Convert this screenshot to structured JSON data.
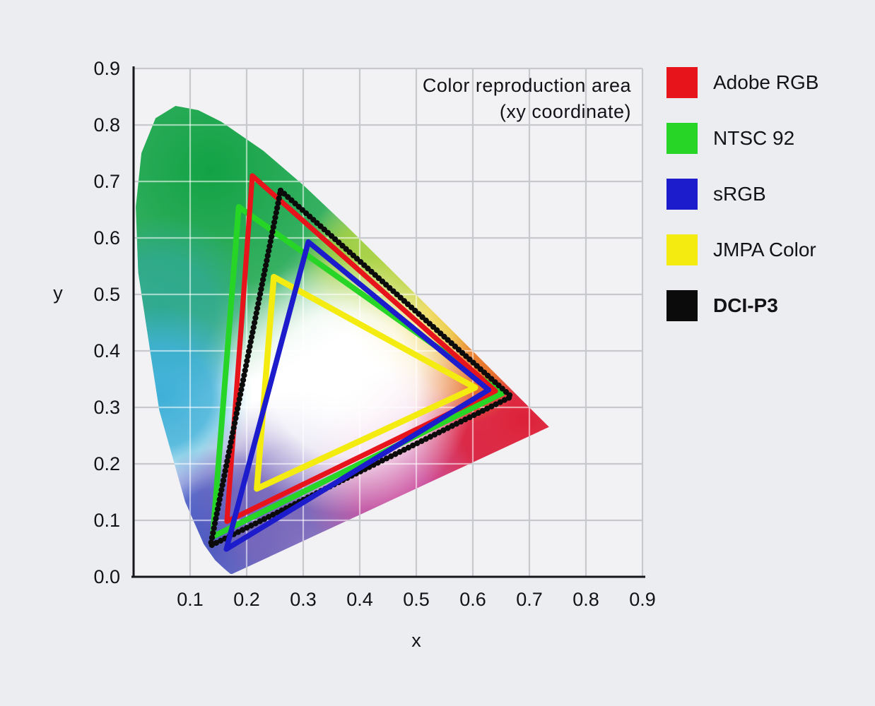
{
  "figure": {
    "title_line1": "Color reproduction area",
    "title_line2": "(xy coordinate)"
  },
  "colors": {
    "page_bg": "#ecedf0",
    "plot_bg": "#f2f2f5",
    "grid_gray": "#c7c9cd",
    "axis_color": "#17171a",
    "text_color": "#131317"
  },
  "chart_data": {
    "type": "area",
    "title": "Color reproduction area (xy coordinate)",
    "xlabel": "x",
    "ylabel": "y",
    "xlim": [
      0,
      0.9
    ],
    "ylim": [
      0,
      0.9
    ],
    "grid": true,
    "legend_position": "right",
    "x_tick_labels": [
      "0.1",
      "0.2",
      "0.3",
      "0.4",
      "0.5",
      "0.6",
      "0.7",
      "0.8",
      "0.9"
    ],
    "y_tick_labels": [
      "0.9",
      "0.8",
      "0.7",
      "0.6",
      "0.5",
      "0.4",
      "0.3",
      "0.2",
      "0.1",
      "0.0"
    ],
    "series": [
      {
        "name": "Adobe RGB",
        "color": "#e8141c",
        "width": 7.2,
        "style": "solid",
        "vertices": [
          [
            0.21,
            0.71
          ],
          [
            0.64,
            0.329
          ],
          [
            0.165,
            0.098
          ]
        ]
      },
      {
        "name": "NTSC 92",
        "color": "#27d527",
        "width": 8.0,
        "style": "solid",
        "vertices": [
          [
            0.186,
            0.655
          ],
          [
            0.652,
            0.325
          ],
          [
            0.14,
            0.071
          ]
        ]
      },
      {
        "name": "sRGB",
        "color": "#1c1ccd",
        "width": 7.5,
        "style": "solid",
        "vertices": [
          [
            0.309,
            0.593
          ],
          [
            0.628,
            0.331
          ],
          [
            0.164,
            0.049
          ]
        ]
      },
      {
        "name": "JMPA Color",
        "color": "#f4ec10",
        "width": 8.5,
        "style": "solid",
        "vertices": [
          [
            0.248,
            0.531
          ],
          [
            0.604,
            0.335
          ],
          [
            0.218,
            0.156
          ]
        ]
      },
      {
        "name": "DCI-P3",
        "color": "#0b0b0b",
        "width": 8.2,
        "style": "beaded",
        "vertices": [
          [
            0.26,
            0.684
          ],
          [
            0.668,
            0.319
          ],
          [
            0.136,
            0.055
          ]
        ]
      }
    ],
    "spectral_locus": [
      [
        0.1741,
        0.005
      ],
      [
        0.1714,
        0.0051
      ],
      [
        0.1644,
        0.0109
      ],
      [
        0.1566,
        0.0177
      ],
      [
        0.144,
        0.0297
      ],
      [
        0.1241,
        0.0578
      ],
      [
        0.0913,
        0.1327
      ],
      [
        0.0454,
        0.295
      ],
      [
        0.0082,
        0.5384
      ],
      [
        0.0039,
        0.6548
      ],
      [
        0.0139,
        0.7502
      ],
      [
        0.0389,
        0.812
      ],
      [
        0.0743,
        0.8338
      ],
      [
        0.1142,
        0.8262
      ],
      [
        0.1547,
        0.8059
      ],
      [
        0.2296,
        0.7543
      ],
      [
        0.3016,
        0.6923
      ],
      [
        0.3731,
        0.6245
      ],
      [
        0.4441,
        0.5547
      ],
      [
        0.5125,
        0.4866
      ],
      [
        0.5752,
        0.4242
      ],
      [
        0.627,
        0.3725
      ],
      [
        0.6658,
        0.334
      ],
      [
        0.6915,
        0.3083
      ],
      [
        0.719,
        0.2809
      ],
      [
        0.7347,
        0.2653
      ]
    ],
    "locus_fill": [
      {
        "x": 0.135,
        "y": 0.72,
        "r": 0.38,
        "color": "#12a245",
        "alpha": 1
      },
      {
        "x": 0.05,
        "y": 0.47,
        "r": 0.17,
        "color": "#2fa98f",
        "alpha": 1
      },
      {
        "x": 0.05,
        "y": 0.32,
        "r": 0.16,
        "color": "#3fb0d8",
        "alpha": 1
      },
      {
        "x": 0.155,
        "y": 0.07,
        "r": 0.16,
        "color": "#3a50c0",
        "alpha": 1
      },
      {
        "x": 0.3,
        "y": 0.12,
        "r": 0.21,
        "color": "#7a68ba",
        "alpha": 1
      },
      {
        "x": 0.51,
        "y": 0.17,
        "r": 0.21,
        "color": "#cb4f9e",
        "alpha": 1
      },
      {
        "x": 0.69,
        "y": 0.28,
        "r": 0.21,
        "color": "#dc2038",
        "alpha": 1
      },
      {
        "x": 0.575,
        "y": 0.4,
        "r": 0.13,
        "color": "#ea8424",
        "alpha": 0.9
      },
      {
        "x": 0.5,
        "y": 0.47,
        "r": 0.12,
        "color": "#e8d01e",
        "alpha": 0.9
      },
      {
        "x": 0.42,
        "y": 0.55,
        "r": 0.13,
        "color": "#a6ce2c",
        "alpha": 0.85
      },
      {
        "x": 0.375,
        "y": 0.34,
        "r": 0.23,
        "color": "#ffffff",
        "alpha": 1
      }
    ]
  }
}
